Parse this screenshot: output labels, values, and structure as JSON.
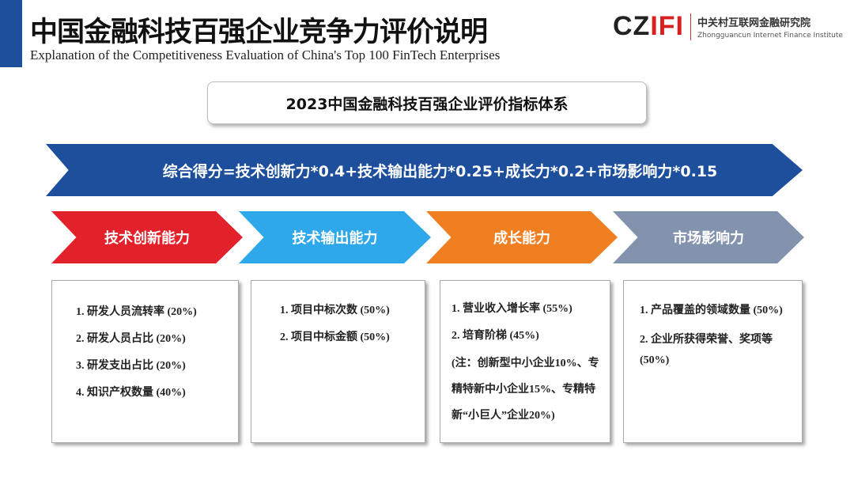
{
  "header": {
    "title": "中国金融科技百强企业竞争力评价说明",
    "subtitle": "Explanation of the Competitiveness Evaluation of China's Top 100 FinTech Enterprises",
    "logo": {
      "mark_a": "CZ",
      "mark_b": "IFI",
      "name_cn": "中关村互联网金融研究院",
      "name_en": "Zhongguancun Internet Finance Institute"
    }
  },
  "system_title": "2023中国金融科技百强企业评价指标体系",
  "formula": "综合得分=技术创新力*0.4+技术输出能力*0.25+成长力*0.2+市场影响力*0.15",
  "colors": {
    "navy": "#1d4f9c",
    "red": "#e3212b",
    "light_blue": "#2ea8ea",
    "orange": "#f07f22",
    "gray_blue": "#8393ad"
  },
  "categories": [
    {
      "label": "技术创新能力",
      "items": [
        "1. 研发人员流转率 (20%)",
        "2. 研发人员占比 (20%)",
        "3. 研发支出占比 (20%)",
        "4. 知识产权数量 (40%)"
      ]
    },
    {
      "label": "技术输出能力",
      "items": [
        "1. 项目中标次数 (50%)",
        "2. 项目中标金额 (50%)"
      ]
    },
    {
      "label": "成长能力",
      "items": [
        "1. 营业收入增长率 (55%)",
        "2. 培育阶梯 (45%)",
        "(注：创新型中小企业10%、专精特新中小企业15%、专精特新“小巨人”企业20%)"
      ]
    },
    {
      "label": "市场影响力",
      "items": [
        "1. 产品覆盖的领域数量 (50%)",
        "2. 企业所获得荣誉、奖项等 (50%)"
      ]
    }
  ]
}
